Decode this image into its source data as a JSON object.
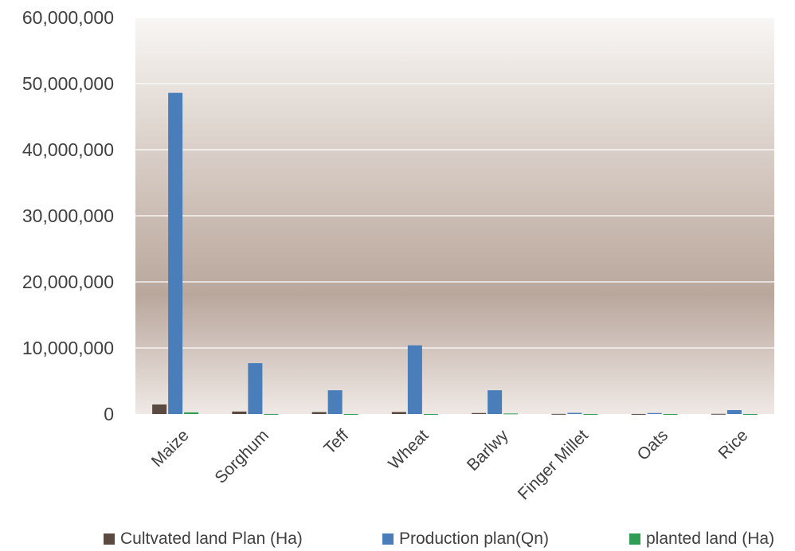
{
  "chart_data": {
    "type": "bar",
    "categories": [
      "Maize",
      "Sorghum",
      "Teff",
      "Wheat",
      "Barlwy",
      "Finger Millet",
      "Oats",
      "Rice"
    ],
    "series": [
      {
        "name": "Cultvated land Plan (Ha)",
        "color": "#5a4a42",
        "values": [
          1450000,
          380000,
          300000,
          310000,
          150000,
          20000,
          10000,
          30000
        ]
      },
      {
        "name": "Production plan(Qn)",
        "color": "#4a7ebb",
        "values": [
          48600000,
          7700000,
          3600000,
          10400000,
          3600000,
          180000,
          150000,
          600000
        ]
      },
      {
        "name": "planted land (Ha)",
        "color": "#2e9e55",
        "values": [
          250000,
          10000,
          5000,
          5000,
          80000,
          5000,
          3000,
          5000
        ]
      }
    ],
    "yticks": [
      "0",
      "10,000,000",
      "20,000,000",
      "30,000,000",
      "40,000,000",
      "50,000,000",
      "60,000,000"
    ],
    "ylim": [
      0,
      60000000
    ],
    "grid": true,
    "legend_position": "bottom",
    "title": "",
    "xlabel": "",
    "ylabel": ""
  }
}
